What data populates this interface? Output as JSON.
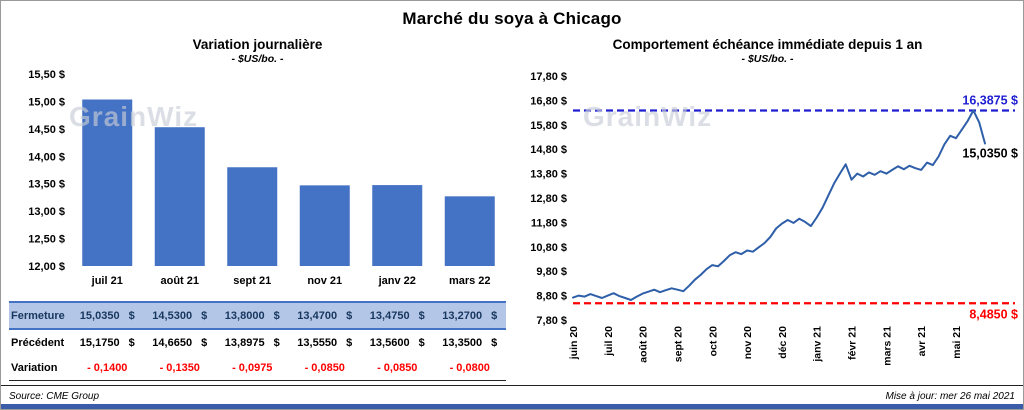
{
  "page": {
    "title": "Marché du soya à Chicago",
    "source": "Source: CME Group",
    "updated": "Mise à jour: mer 26 mai 2021"
  },
  "watermark": "GrainWiz",
  "chart_data": [
    {
      "type": "bar",
      "title": "Variation journalière",
      "subtitle": "- $US/bo. -",
      "categories": [
        "juil 21",
        "août 21",
        "sept 21",
        "nov 21",
        "janv 22",
        "mars 22"
      ],
      "values": [
        15.035,
        14.53,
        13.8,
        13.47,
        13.475,
        13.27
      ],
      "ylim": [
        12.0,
        15.5
      ],
      "ytick_step": 0.5,
      "ytick_labels": [
        "15,50 $",
        "15,00 $",
        "14,50 $",
        "14,00 $",
        "13,50 $",
        "13,00 $",
        "12,50 $",
        "12,00 $"
      ],
      "bar_color": "#4472C4",
      "grid": false
    },
    {
      "type": "line",
      "title": "Comportement échéance immédiate depuis 1 an",
      "subtitle": "- $US/bo. -",
      "ylim": [
        7.8,
        17.8
      ],
      "ytick_step": 1.0,
      "ytick_labels": [
        "17,80 $",
        "16,80 $",
        "15,80 $",
        "14,80 $",
        "13,80 $",
        "12,80 $",
        "11,80 $",
        "10,80 $",
        "9,80 $",
        "8,80 $",
        "7,80 $"
      ],
      "x_labels": [
        "juin 20",
        "juil 20",
        "août 20",
        "sept 20",
        "oct 20",
        "nov 20",
        "déc 20",
        "janv 21",
        "févr 21",
        "mars 21",
        "avr 21",
        "mai 21"
      ],
      "points_per_month": 6,
      "values": [
        8.72,
        8.8,
        8.76,
        8.86,
        8.78,
        8.7,
        8.8,
        8.9,
        8.78,
        8.7,
        8.62,
        8.76,
        8.88,
        8.96,
        9.04,
        8.94,
        9.02,
        9.1,
        9.04,
        8.98,
        9.2,
        9.45,
        9.65,
        9.88,
        10.05,
        10.0,
        10.22,
        10.45,
        10.58,
        10.5,
        10.65,
        10.6,
        10.78,
        10.95,
        11.2,
        11.55,
        11.75,
        11.9,
        11.78,
        11.95,
        11.82,
        11.65,
        12.0,
        12.4,
        12.9,
        13.4,
        13.8,
        14.18,
        13.55,
        13.8,
        13.68,
        13.85,
        13.75,
        13.9,
        13.8,
        13.95,
        14.1,
        13.98,
        14.12,
        14.02,
        13.95,
        14.25,
        14.15,
        14.5,
        15.0,
        15.35,
        15.25,
        15.6,
        15.95,
        16.39,
        15.9,
        15.035
      ],
      "line_color": "#2E5FA8",
      "ref_high": {
        "value": 16.3875,
        "label": "16,3875 $",
        "color": "#1F1FD1"
      },
      "ref_low": {
        "value": 8.485,
        "label": "8,4850 $",
        "color": "#FF0000"
      },
      "last_label": {
        "value": 15.035,
        "label": "15,0350 $",
        "color": "#000000"
      },
      "grid": false,
      "legend": "none"
    }
  ],
  "table": {
    "rows": [
      {
        "style": "fermeture",
        "label": "Fermeture",
        "suffix": "$",
        "values": [
          "15,0350",
          "14,5300",
          "13,8000",
          "13,4700",
          "13,4750",
          "13,2700"
        ]
      },
      {
        "style": "precedent",
        "label": "Précédent",
        "suffix": "$",
        "values": [
          "15,1750",
          "14,6650",
          "13,8975",
          "13,5550",
          "13,5600",
          "13,3500"
        ]
      },
      {
        "style": "variation",
        "label": "Variation",
        "suffix": "",
        "values": [
          "- 0,1400",
          "- 0,1350",
          "- 0,0975",
          "- 0,0850",
          "- 0,0850",
          "- 0,0800"
        ]
      }
    ]
  }
}
